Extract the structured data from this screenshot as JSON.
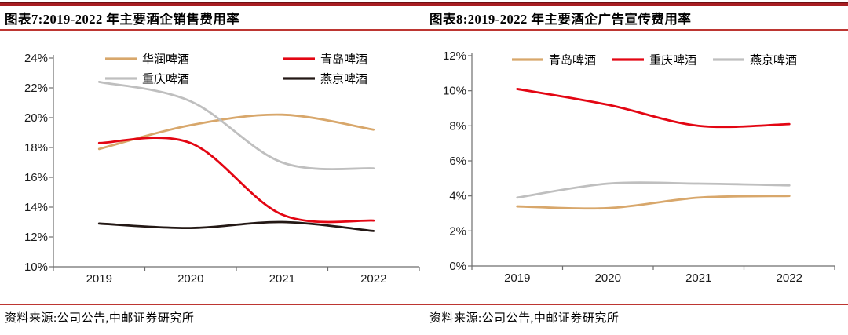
{
  "page": {
    "background": "#ffffff",
    "top_bar_color": "#a81e22",
    "rule_color": "#bd3632",
    "axis_color": "#6e6e6e",
    "tick_text_color": "#1a1a1a"
  },
  "chart_data": [
    {
      "type": "line",
      "title": "图表7:2019-2022 年主要酒企销售费用率",
      "source": "资料来源:公司公告,中邮证券研究所",
      "x": [
        "2019",
        "2020",
        "2021",
        "2022"
      ],
      "ylim": [
        10,
        24
      ],
      "ytick_step": 2,
      "ytick_labels": [
        "10%",
        "12%",
        "14%",
        "16%",
        "18%",
        "20%",
        "22%",
        "24%"
      ],
      "grid": false,
      "legend_position": "top",
      "legend_rows": 2,
      "line_style": "smooth",
      "series": [
        {
          "name": "华润啤酒",
          "color": "#d8a76b",
          "values": [
            17.9,
            19.5,
            20.2,
            19.2
          ]
        },
        {
          "name": "青岛啤酒",
          "color": "#e30613",
          "values": [
            18.3,
            18.3,
            13.5,
            13.1
          ]
        },
        {
          "name": "重庆啤酒",
          "color": "#bfbfbf",
          "values": [
            22.4,
            21.1,
            17.0,
            16.6
          ]
        },
        {
          "name": "燕京啤酒",
          "color": "#231815",
          "values": [
            12.9,
            12.6,
            13.0,
            12.4
          ]
        }
      ]
    },
    {
      "type": "line",
      "title": "图表8:2019-2022 年主要酒企广告宣传费用率",
      "source": "资料来源:公司公告,中邮证券研究所",
      "x": [
        "2019",
        "2020",
        "2021",
        "2022"
      ],
      "ylim": [
        0,
        12
      ],
      "ytick_step": 2,
      "ytick_labels": [
        "0%",
        "2%",
        "4%",
        "6%",
        "8%",
        "10%",
        "12%"
      ],
      "grid": false,
      "legend_position": "top",
      "legend_rows": 1,
      "line_style": "smooth",
      "series": [
        {
          "name": "青岛啤酒",
          "color": "#d8a76b",
          "values": [
            3.4,
            3.3,
            3.9,
            4.0
          ]
        },
        {
          "name": "重庆啤酒",
          "color": "#e30613",
          "values": [
            10.1,
            9.2,
            8.0,
            8.1
          ]
        },
        {
          "name": "燕京啤酒",
          "color": "#bfbfbf",
          "values": [
            3.9,
            4.7,
            4.7,
            4.6
          ]
        }
      ]
    }
  ]
}
